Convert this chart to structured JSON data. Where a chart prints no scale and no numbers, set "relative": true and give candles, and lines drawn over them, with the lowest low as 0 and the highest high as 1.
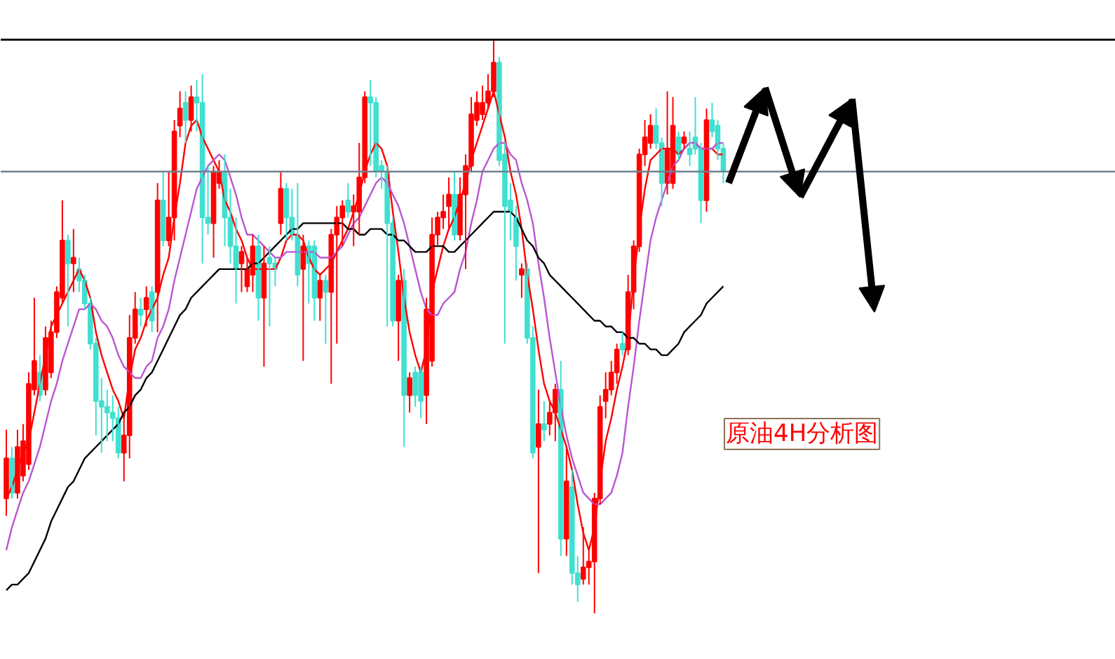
{
  "chart_data": {
    "type": "candlestick",
    "relative": true,
    "grid": false,
    "tick_labels": false,
    "annotations": [
      "原油4H分析图"
    ],
    "categories": [
      null,
      null,
      null,
      null,
      null,
      null,
      null,
      null,
      null,
      null,
      null,
      null,
      null,
      null,
      null,
      null,
      null,
      null,
      null,
      null,
      null,
      null,
      null,
      null,
      null,
      null,
      null,
      null,
      null,
      null,
      null,
      null,
      null,
      null,
      null,
      null,
      null,
      null,
      null,
      null,
      null,
      null,
      null,
      null,
      null,
      null,
      null,
      null,
      null,
      null,
      null,
      null,
      null,
      null,
      null,
      null,
      null,
      null,
      null,
      null,
      null,
      null,
      null,
      null,
      null,
      null,
      null,
      null,
      null,
      null,
      null,
      null,
      null,
      null,
      null,
      null,
      null,
      null,
      null,
      null,
      null,
      null,
      null,
      null,
      null,
      null,
      null,
      null,
      null,
      null,
      null,
      null,
      null,
      null,
      null,
      null,
      null,
      null,
      null,
      null,
      null,
      null,
      null,
      null,
      null,
      null,
      null,
      null,
      null,
      null,
      null,
      null,
      null,
      null,
      null,
      null,
      null,
      null,
      null,
      null,
      null,
      null,
      null,
      null,
      null,
      null,
      null,
      null,
      null
    ],
    "ohlc": [
      [
        0.2,
        0.32,
        0.17,
        0.27
      ],
      [
        0.27,
        0.29,
        0.2,
        0.21
      ],
      [
        0.21,
        0.32,
        0.2,
        0.29
      ],
      [
        0.24,
        0.33,
        0.23,
        0.3
      ],
      [
        0.26,
        0.42,
        0.25,
        0.4
      ],
      [
        0.39,
        0.55,
        0.38,
        0.44
      ],
      [
        0.42,
        0.45,
        0.37,
        0.38
      ],
      [
        0.39,
        0.5,
        0.38,
        0.48
      ],
      [
        0.42,
        0.51,
        0.41,
        0.49
      ],
      [
        0.49,
        0.57,
        0.48,
        0.56
      ],
      [
        0.55,
        0.72,
        0.54,
        0.65
      ],
      [
        0.65,
        0.66,
        0.5,
        0.61
      ],
      [
        0.61,
        0.67,
        0.56,
        0.62
      ],
      [
        0.6,
        0.62,
        0.56,
        0.58
      ],
      [
        0.58,
        0.59,
        0.53,
        0.54
      ],
      [
        0.54,
        0.55,
        0.46,
        0.47
      ],
      [
        0.47,
        0.48,
        0.31,
        0.37
      ],
      [
        0.37,
        0.41,
        0.28,
        0.36
      ],
      [
        0.36,
        0.39,
        0.3,
        0.35
      ],
      [
        0.35,
        0.38,
        0.3,
        0.34
      ],
      [
        0.34,
        0.36,
        0.27,
        0.28
      ],
      [
        0.28,
        0.34,
        0.23,
        0.31
      ],
      [
        0.31,
        0.52,
        0.27,
        0.48
      ],
      [
        0.48,
        0.56,
        0.47,
        0.53
      ],
      [
        0.53,
        0.55,
        0.5,
        0.52
      ],
      [
        0.53,
        0.57,
        0.5,
        0.55
      ],
      [
        0.56,
        0.57,
        0.49,
        0.51
      ],
      [
        0.56,
        0.75,
        0.49,
        0.72
      ],
      [
        0.72,
        0.77,
        0.64,
        0.65
      ],
      [
        0.65,
        0.77,
        0.64,
        0.69
      ],
      [
        0.69,
        0.86,
        0.65,
        0.84
      ],
      [
        0.85,
        0.91,
        0.83,
        0.88
      ],
      [
        0.89,
        0.91,
        0.82,
        0.86
      ],
      [
        0.86,
        0.92,
        0.84,
        0.9
      ],
      [
        0.9,
        0.93,
        0.84,
        0.89
      ],
      [
        0.89,
        0.94,
        0.61,
        0.69
      ],
      [
        0.69,
        0.78,
        0.66,
        0.68
      ],
      [
        0.68,
        0.78,
        0.62,
        0.77
      ],
      [
        0.75,
        0.79,
        0.74,
        0.77
      ],
      [
        0.77,
        0.8,
        0.64,
        0.69
      ],
      [
        0.69,
        0.74,
        0.61,
        0.64
      ],
      [
        0.64,
        0.69,
        0.54,
        0.6
      ],
      [
        0.61,
        0.64,
        0.56,
        0.63
      ],
      [
        0.57,
        0.62,
        0.56,
        0.6
      ],
      [
        0.59,
        0.66,
        0.56,
        0.64
      ],
      [
        0.64,
        0.66,
        0.51,
        0.55
      ],
      [
        0.55,
        0.64,
        0.43,
        0.61
      ],
      [
        0.62,
        0.64,
        0.5,
        0.61
      ],
      [
        0.61,
        0.62,
        0.57,
        0.6
      ],
      [
        0.68,
        0.77,
        0.66,
        0.74
      ],
      [
        0.74,
        0.75,
        0.65,
        0.69
      ],
      [
        0.69,
        0.74,
        0.65,
        0.66
      ],
      [
        0.66,
        0.75,
        0.57,
        0.59
      ],
      [
        0.6,
        0.66,
        0.44,
        0.64
      ],
      [
        0.64,
        0.65,
        0.54,
        0.61
      ],
      [
        0.64,
        0.65,
        0.51,
        0.55
      ],
      [
        0.55,
        0.59,
        0.51,
        0.58
      ],
      [
        0.58,
        0.59,
        0.47,
        0.56
      ],
      [
        0.56,
        0.67,
        0.4,
        0.66
      ],
      [
        0.66,
        0.71,
        0.47,
        0.69
      ],
      [
        0.69,
        0.72,
        0.64,
        0.71
      ],
      [
        0.72,
        0.75,
        0.69,
        0.7
      ],
      [
        0.7,
        0.73,
        0.64,
        0.71
      ],
      [
        0.7,
        0.82,
        0.66,
        0.76
      ],
      [
        0.76,
        0.91,
        0.75,
        0.9
      ],
      [
        0.9,
        0.93,
        0.78,
        0.89
      ],
      [
        0.89,
        0.9,
        0.76,
        0.77
      ],
      [
        0.78,
        0.79,
        0.74,
        0.77
      ],
      [
        0.77,
        0.78,
        0.5,
        0.68
      ],
      [
        0.68,
        0.69,
        0.5,
        0.51
      ],
      [
        0.51,
        0.59,
        0.44,
        0.58
      ],
      [
        0.58,
        0.6,
        0.29,
        0.38
      ],
      [
        0.38,
        0.42,
        0.35,
        0.41
      ],
      [
        0.42,
        0.43,
        0.36,
        0.38
      ],
      [
        0.42,
        0.43,
        0.34,
        0.37
      ],
      [
        0.38,
        0.55,
        0.33,
        0.53
      ],
      [
        0.44,
        0.69,
        0.43,
        0.66
      ],
      [
        0.66,
        0.7,
        0.64,
        0.69
      ],
      [
        0.69,
        0.73,
        0.67,
        0.7
      ],
      [
        0.71,
        0.76,
        0.67,
        0.73
      ],
      [
        0.73,
        0.77,
        0.65,
        0.66
      ],
      [
        0.66,
        0.76,
        0.65,
        0.73
      ],
      [
        0.73,
        0.8,
        0.6,
        0.78
      ],
      [
        0.78,
        0.9,
        0.77,
        0.87
      ],
      [
        0.86,
        0.91,
        0.85,
        0.89
      ],
      [
        0.87,
        0.92,
        0.86,
        0.89
      ],
      [
        0.89,
        0.94,
        0.88,
        0.91
      ],
      [
        0.91,
        1.0,
        0.9,
        0.96
      ],
      [
        0.96,
        0.97,
        0.78,
        0.79
      ],
      [
        0.8,
        0.82,
        0.47,
        0.71
      ],
      [
        0.72,
        0.75,
        0.65,
        0.7
      ],
      [
        0.69,
        0.71,
        0.58,
        0.64
      ],
      [
        0.59,
        0.61,
        0.55,
        0.6
      ],
      [
        0.6,
        0.61,
        0.47,
        0.48
      ],
      [
        0.48,
        0.5,
        0.27,
        0.28
      ],
      [
        0.29,
        0.39,
        0.07,
        0.33
      ],
      [
        0.33,
        0.37,
        0.3,
        0.32
      ],
      [
        0.33,
        0.37,
        0.31,
        0.35
      ],
      [
        0.35,
        0.4,
        0.3,
        0.39
      ],
      [
        0.39,
        0.44,
        0.1,
        0.13
      ],
      [
        0.13,
        0.29,
        0.1,
        0.23
      ],
      [
        0.22,
        0.25,
        0.05,
        0.07
      ],
      [
        0.07,
        0.1,
        0.02,
        0.05
      ],
      [
        0.06,
        0.15,
        0.05,
        0.08
      ],
      [
        0.08,
        0.11,
        0.05,
        0.09
      ],
      [
        0.09,
        0.21,
        0.0,
        0.2
      ],
      [
        0.2,
        0.38,
        0.19,
        0.36
      ],
      [
        0.37,
        0.42,
        0.34,
        0.39
      ],
      [
        0.39,
        0.44,
        0.38,
        0.42
      ],
      [
        0.42,
        0.47,
        0.4,
        0.46
      ],
      [
        0.47,
        0.49,
        0.45,
        0.46
      ],
      [
        0.46,
        0.59,
        0.45,
        0.56
      ],
      [
        0.56,
        0.65,
        0.53,
        0.64
      ],
      [
        0.64,
        0.81,
        0.63,
        0.8
      ],
      [
        0.8,
        0.86,
        0.78,
        0.83
      ],
      [
        0.82,
        0.87,
        0.81,
        0.85
      ],
      [
        0.85,
        0.88,
        0.81,
        0.82
      ],
      [
        0.82,
        0.83,
        0.71,
        0.75
      ],
      [
        0.75,
        0.91,
        0.73,
        0.81
      ],
      [
        0.75,
        0.9,
        0.74,
        0.85
      ],
      [
        0.83,
        0.84,
        0.79,
        0.8
      ],
      [
        0.82,
        0.84,
        0.81,
        0.83
      ],
      [
        0.81,
        0.84,
        0.78,
        0.8
      ],
      [
        0.83,
        0.9,
        0.8,
        0.81
      ],
      [
        0.81,
        0.82,
        0.68,
        0.72
      ],
      [
        0.72,
        0.88,
        0.7,
        0.86
      ],
      [
        0.86,
        0.89,
        0.83,
        0.84
      ],
      [
        0.85,
        0.86,
        0.79,
        0.81
      ],
      [
        0.81,
        0.82,
        0.75,
        0.77
      ]
    ],
    "colors": [
      "#ff0000",
      "#40e0d0",
      "#ff0000",
      "#ff0000",
      "#ff0000",
      "#ff0000",
      "#40e0d0",
      "#ff0000",
      "#ff0000",
      "#ff0000",
      "#ff0000",
      "#40e0d0",
      "#ff0000",
      "#40e0d0",
      "#40e0d0",
      "#40e0d0",
      "#40e0d0",
      "#40e0d0",
      "#40e0d0",
      "#40e0d0",
      "#40e0d0",
      "#ff0000",
      "#ff0000",
      "#ff0000",
      "#40e0d0",
      "#ff0000",
      "#40e0d0",
      "#ff0000",
      "#40e0d0",
      "#ff0000",
      "#ff0000",
      "#ff0000",
      "#40e0d0",
      "#ff0000",
      "#40e0d0",
      "#40e0d0",
      "#40e0d0",
      "#ff0000",
      "#ff0000",
      "#40e0d0",
      "#40e0d0",
      "#40e0d0",
      "#ff0000",
      "#ff0000",
      "#ff0000",
      "#40e0d0",
      "#ff0000",
      "#40e0d0",
      "#40e0d0",
      "#ff0000",
      "#40e0d0",
      "#40e0d0",
      "#40e0d0",
      "#ff0000",
      "#40e0d0",
      "#40e0d0",
      "#ff0000",
      "#40e0d0",
      "#ff0000",
      "#ff0000",
      "#ff0000",
      "#40e0d0",
      "#ff0000",
      "#ff0000",
      "#ff0000",
      "#40e0d0",
      "#40e0d0",
      "#40e0d0",
      "#40e0d0",
      "#40e0d0",
      "#ff0000",
      "#40e0d0",
      "#ff0000",
      "#40e0d0",
      "#40e0d0",
      "#ff0000",
      "#ff0000",
      "#ff0000",
      "#ff0000",
      "#ff0000",
      "#40e0d0",
      "#ff0000",
      "#ff0000",
      "#ff0000",
      "#ff0000",
      "#ff0000",
      "#ff0000",
      "#ff0000",
      "#40e0d0",
      "#40e0d0",
      "#40e0d0",
      "#40e0d0",
      "#ff0000",
      "#40e0d0",
      "#40e0d0",
      "#ff0000",
      "#40e0d0",
      "#ff0000",
      "#ff0000",
      "#40e0d0",
      "#ff0000",
      "#40e0d0",
      "#40e0d0",
      "#ff0000",
      "#ff0000",
      "#ff0000",
      "#ff0000",
      "#ff0000",
      "#ff0000",
      "#ff0000",
      "#40e0d0",
      "#ff0000",
      "#ff0000",
      "#ff0000",
      "#ff0000",
      "#ff0000",
      "#40e0d0",
      "#40e0d0",
      "#ff0000",
      "#ff0000",
      "#40e0d0",
      "#ff0000",
      "#40e0d0",
      "#40e0d0",
      "#40e0d0",
      "#ff0000",
      "#40e0d0",
      "#40e0d0",
      "#40e0d0"
    ],
    "series": [
      {
        "type": "line",
        "color": "#ff0000",
        "values": [
          0.2,
          0.22,
          0.25,
          0.28,
          0.3,
          0.35,
          0.4,
          0.45,
          0.5,
          0.52,
          0.54,
          0.56,
          0.58,
          0.6,
          0.58,
          0.55,
          0.49,
          0.45,
          0.42,
          0.39,
          0.37,
          0.34,
          0.41,
          0.46,
          0.48,
          0.51,
          0.53,
          0.55,
          0.59,
          0.62,
          0.69,
          0.75,
          0.82,
          0.85,
          0.86,
          0.83,
          0.81,
          0.79,
          0.77,
          0.72,
          0.7,
          0.67,
          0.65,
          0.62,
          0.6,
          0.6,
          0.6,
          0.6,
          0.6,
          0.62,
          0.65,
          0.66,
          0.66,
          0.65,
          0.62,
          0.6,
          0.59,
          0.6,
          0.61,
          0.63,
          0.65,
          0.67,
          0.7,
          0.73,
          0.77,
          0.8,
          0.82,
          0.81,
          0.78,
          0.7,
          0.63,
          0.55,
          0.49,
          0.45,
          0.42,
          0.46,
          0.56,
          0.6,
          0.64,
          0.67,
          0.69,
          0.72,
          0.75,
          0.79,
          0.82,
          0.85,
          0.88,
          0.91,
          0.87,
          0.83,
          0.77,
          0.73,
          0.67,
          0.59,
          0.53,
          0.46,
          0.4,
          0.37,
          0.35,
          0.32,
          0.29,
          0.25,
          0.19,
          0.14,
          0.11,
          0.15,
          0.23,
          0.3,
          0.34,
          0.39,
          0.43,
          0.48,
          0.58,
          0.67,
          0.74,
          0.79,
          0.8,
          0.81,
          0.81,
          0.81,
          0.8,
          0.81,
          0.82,
          0.82,
          0.81,
          0.81,
          0.81,
          0.8,
          0.8
        ]
      },
      {
        "type": "line",
        "color": "#ba55d3",
        "values": [
          0.11,
          0.15,
          0.18,
          0.21,
          0.23,
          0.26,
          0.29,
          0.33,
          0.37,
          0.4,
          0.44,
          0.47,
          0.5,
          0.53,
          0.53,
          0.54,
          0.53,
          0.51,
          0.5,
          0.48,
          0.45,
          0.43,
          0.42,
          0.41,
          0.41,
          0.43,
          0.44,
          0.48,
          0.5,
          0.53,
          0.58,
          0.62,
          0.66,
          0.7,
          0.74,
          0.76,
          0.78,
          0.79,
          0.8,
          0.79,
          0.76,
          0.73,
          0.69,
          0.66,
          0.66,
          0.65,
          0.64,
          0.63,
          0.62,
          0.62,
          0.63,
          0.63,
          0.63,
          0.63,
          0.63,
          0.63,
          0.62,
          0.62,
          0.62,
          0.63,
          0.64,
          0.66,
          0.68,
          0.69,
          0.71,
          0.73,
          0.75,
          0.76,
          0.75,
          0.73,
          0.71,
          0.68,
          0.64,
          0.6,
          0.56,
          0.53,
          0.52,
          0.52,
          0.54,
          0.55,
          0.56,
          0.6,
          0.63,
          0.68,
          0.72,
          0.77,
          0.79,
          0.81,
          0.82,
          0.82,
          0.8,
          0.79,
          0.75,
          0.72,
          0.68,
          0.61,
          0.55,
          0.48,
          0.42,
          0.36,
          0.31,
          0.27,
          0.24,
          0.21,
          0.2,
          0.19,
          0.19,
          0.2,
          0.21,
          0.24,
          0.28,
          0.36,
          0.43,
          0.51,
          0.58,
          0.65,
          0.69,
          0.72,
          0.75,
          0.78,
          0.79,
          0.81,
          0.82,
          0.82,
          0.81,
          0.81,
          0.81,
          0.82,
          0.82
        ]
      },
      {
        "type": "line",
        "color": "#000000",
        "values": [
          0.04,
          0.05,
          0.05,
          0.06,
          0.07,
          0.09,
          0.11,
          0.13,
          0.16,
          0.18,
          0.2,
          0.22,
          0.23,
          0.25,
          0.27,
          0.28,
          0.29,
          0.3,
          0.31,
          0.32,
          0.33,
          0.35,
          0.36,
          0.38,
          0.39,
          0.41,
          0.42,
          0.44,
          0.46,
          0.48,
          0.5,
          0.52,
          0.53,
          0.55,
          0.56,
          0.57,
          0.58,
          0.59,
          0.6,
          0.6,
          0.6,
          0.6,
          0.6,
          0.6,
          0.61,
          0.61,
          0.62,
          0.63,
          0.64,
          0.65,
          0.66,
          0.67,
          0.67,
          0.68,
          0.68,
          0.68,
          0.68,
          0.68,
          0.68,
          0.68,
          0.68,
          0.67,
          0.67,
          0.66,
          0.66,
          0.67,
          0.67,
          0.67,
          0.66,
          0.66,
          0.65,
          0.65,
          0.64,
          0.63,
          0.63,
          0.63,
          0.64,
          0.64,
          0.64,
          0.63,
          0.63,
          0.64,
          0.65,
          0.66,
          0.67,
          0.68,
          0.69,
          0.7,
          0.7,
          0.7,
          0.7,
          0.69,
          0.67,
          0.65,
          0.64,
          0.62,
          0.61,
          0.59,
          0.58,
          0.57,
          0.56,
          0.55,
          0.54,
          0.53,
          0.52,
          0.51,
          0.51,
          0.5,
          0.5,
          0.49,
          0.49,
          0.48,
          0.48,
          0.47,
          0.47,
          0.46,
          0.46,
          0.45,
          0.45,
          0.46,
          0.47,
          0.49,
          0.5,
          0.51,
          0.52,
          0.54,
          0.55,
          0.56,
          0.57
        ]
      }
    ],
    "ref_lines": [
      {
        "axis": "y",
        "value": 0.77,
        "color": "#708090"
      },
      {
        "axis": "y",
        "value": 1.0,
        "color": "#000000"
      }
    ]
  }
}
